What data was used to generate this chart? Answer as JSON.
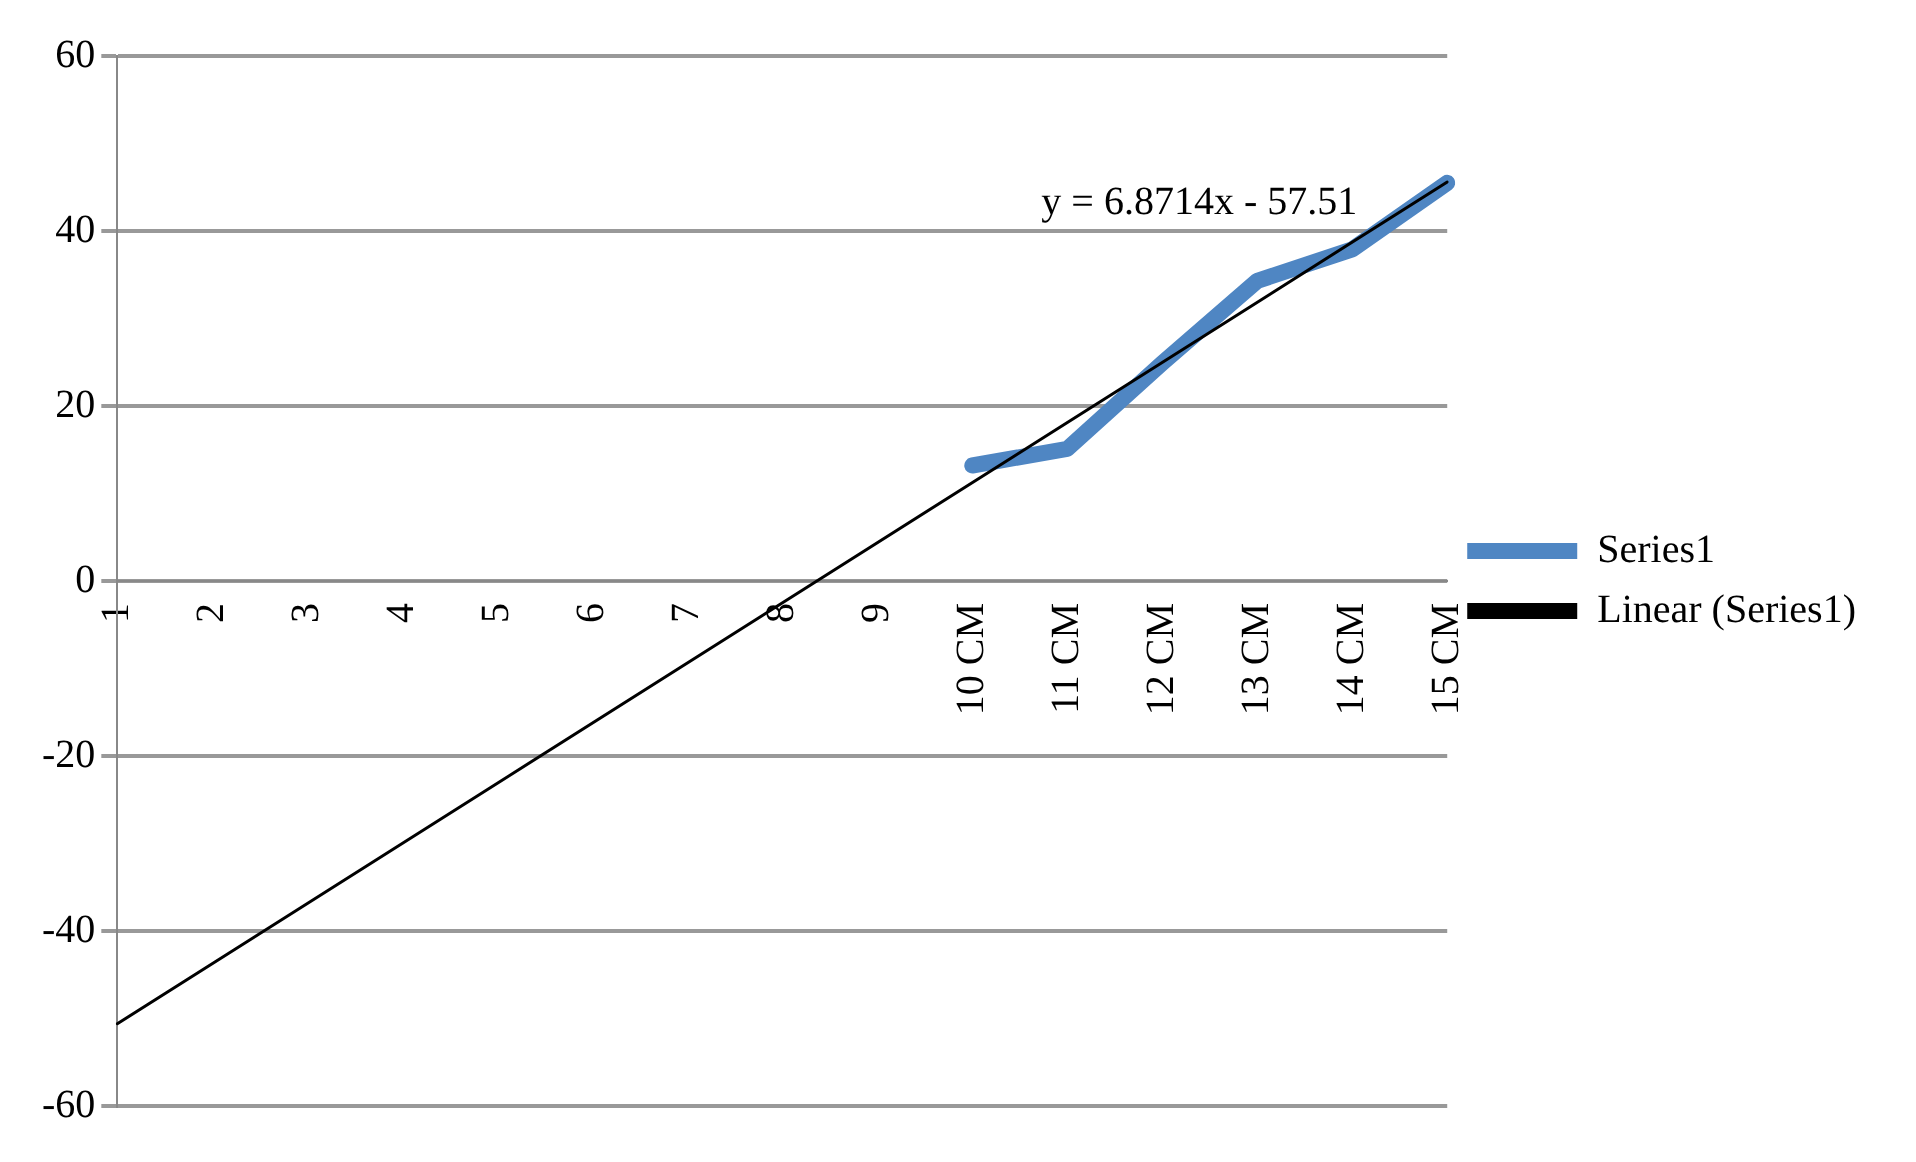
{
  "chart_data": {
    "type": "line",
    "categories": [
      "1",
      "2",
      "3",
      "4",
      "5",
      "6",
      "7",
      "8",
      "9",
      "10 CM",
      "11 CM",
      "12 CM",
      "13 CM",
      "14 CM",
      "15 CM"
    ],
    "series": [
      {
        "name": "Series1",
        "color": "#4f86c3",
        "values": [
          null,
          null,
          null,
          null,
          null,
          null,
          null,
          null,
          null,
          13.2,
          15.1,
          24.9,
          34.3,
          37.9,
          45.5
        ]
      },
      {
        "name": "Linear (Series1)",
        "color": "#000000",
        "values": [
          -50.6,
          null,
          null,
          null,
          null,
          null,
          null,
          null,
          null,
          null,
          null,
          null,
          null,
          null,
          45.6
        ]
      }
    ],
    "ylim": [
      -60,
      60
    ],
    "yticks": [
      -60,
      -40,
      -20,
      0,
      20,
      40,
      60
    ],
    "grid": "y",
    "legend": "right",
    "marker": "none",
    "annotations": [
      "y = 6.8714x - 57.51"
    ]
  }
}
